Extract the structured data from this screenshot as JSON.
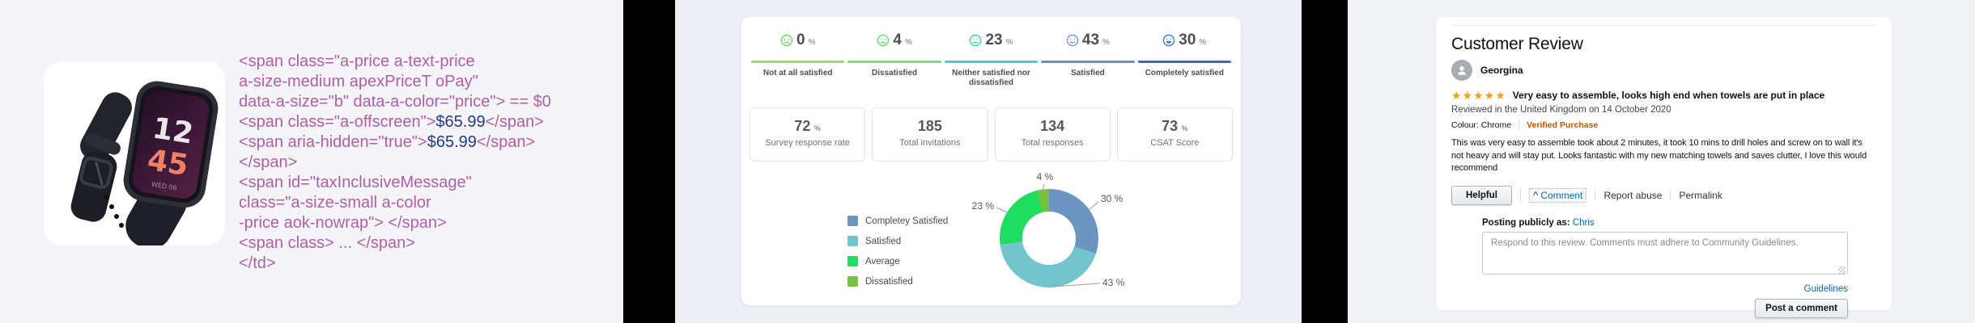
{
  "left_panel": {
    "watch": {
      "time_hours": "12",
      "time_minutes": "45",
      "date_label": "WED 06"
    },
    "code_colors": {
      "tag": "#ae5fa5",
      "price": "#233a85"
    },
    "code_lines": [
      [
        {
          "t": "<span class=\"a-price a-text-price",
          "c": "tag"
        }
      ],
      [
        {
          "t": "a-size-medium apexPriceT oPay\"",
          "c": "tag"
        }
      ],
      [
        {
          "t": "data-a-size=\"b\" data-a-color=\"price\"> == $0",
          "c": "tag"
        }
      ],
      [
        {
          "t": "<span class=\"a-offscreen\">",
          "c": "tag"
        },
        {
          "t": "$65.99",
          "c": "price"
        },
        {
          "t": "</span>",
          "c": "tag"
        }
      ],
      [
        {
          "t": "<span aria-hidden=\"true\">",
          "c": "tag"
        },
        {
          "t": "$65.99",
          "c": "price"
        },
        {
          "t": "</span>",
          "c": "tag"
        }
      ],
      [
        {
          "t": "</span>",
          "c": "tag"
        }
      ],
      [
        {
          "t": "<span id=\"taxInclusiveMessage\"",
          "c": "tag"
        }
      ],
      [
        {
          "t": "class=\"a-size-small a-color",
          "c": "tag"
        }
      ],
      [
        {
          "t": "-price aok-nowrap\"> </span>",
          "c": "tag"
        }
      ],
      [
        {
          "t": "<span class> ... </span>",
          "c": "tag"
        }
      ],
      [
        {
          "t": "</td>",
          "c": "tag"
        }
      ]
    ]
  },
  "csat": {
    "scale": [
      {
        "value": "0",
        "unit": "%",
        "label": "Not at all satisfied",
        "icon_color": "#62d964",
        "bar_color": "#a5d55f"
      },
      {
        "value": "4",
        "unit": "%",
        "label": "Dissatisfied",
        "icon_color": "#5ed968",
        "bar_color": "#70de88"
      },
      {
        "value": "23",
        "unit": "%",
        "label": "Neither satisfied nor dissatisfied",
        "icon_color": "#35cfa6",
        "bar_color": "#43d1c3"
      },
      {
        "value": "43",
        "unit": "%",
        "label": "Satisfied",
        "icon_color": "#7b8ede",
        "bar_color": "#7287d7"
      },
      {
        "value": "30",
        "unit": "%",
        "label": "Completely satisfied",
        "icon_color": "#3c79cf",
        "bar_color": "#2f72c5"
      }
    ],
    "stats": [
      {
        "value": "72",
        "unit": "%",
        "label": "Survey response rate"
      },
      {
        "value": "185",
        "unit": "",
        "label": "Total invitations"
      },
      {
        "value": "134",
        "unit": "",
        "label": "Total responses"
      },
      {
        "value": "73",
        "unit": "%",
        "label": "CSAT Score"
      }
    ]
  },
  "chart_data": {
    "type": "pie",
    "donut": true,
    "title": "",
    "labels": [
      "Completey Satisfied",
      "Satisfied",
      "Average",
      "Dissatisfied"
    ],
    "values": [
      30,
      43,
      23,
      4
    ],
    "unit": "%",
    "colors": [
      "#6d95c1",
      "#74c4cd",
      "#1fdd60",
      "#79c140"
    ],
    "legend_position": "left",
    "callout_labels": [
      "30 %",
      "43 %",
      "23 %",
      "4 %"
    ]
  },
  "review": {
    "title": "Customer Review",
    "reviewer_name": "Georgina",
    "rating_stars": 5,
    "star_color": "#f5a01b",
    "review_headline": "Very easy to assemble, looks high end when towels are put in place",
    "reviewed_in": "Reviewed in the United Kingdom on 14 October 2020",
    "colour_label": "Colour: Chrome",
    "verified_badge": "Verified Purchase",
    "verified_color": "#c45500",
    "link_color": "#0066c0",
    "body": "This was very easy to assemble took about 2 minutes, it took 10 mins to drill holes and screw on to wall it's not heavy and will stay put. Looks fantastic with my new matching towels and saves clutter, I love this would recommend",
    "helpful_button": "Helpful",
    "comment_caret": "^",
    "comment_link": "Comment",
    "report_abuse_link": "Report abuse",
    "permalink_link": "Permalink",
    "posting_publicly_prefix": "Posting publicly as:",
    "posting_publicly_name": "Chris",
    "comment_placeholder": "Respond to this review. Comments must adhere to Community Guidelines.",
    "guidelines_link": "Guidelines",
    "post_comment_button": "Post a comment"
  }
}
